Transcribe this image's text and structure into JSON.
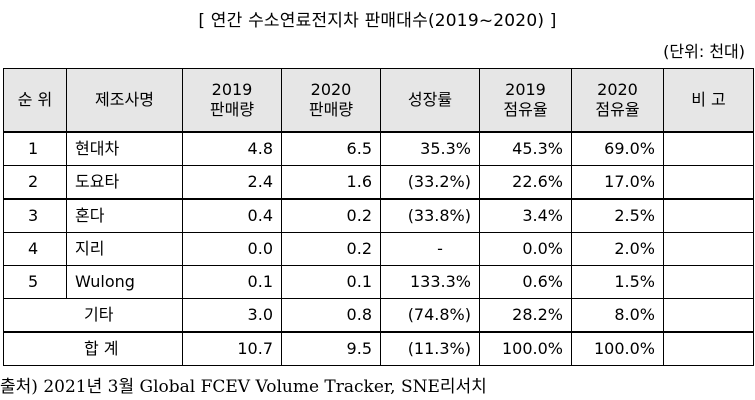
{
  "title": "[ 연간 수소연료전지차 판매대수(2019~2020) ]",
  "unit": "(단위: 천대)",
  "headers": {
    "rank": "순 위",
    "maker": "제조사명",
    "sales2019": [
      "2019",
      "판매량"
    ],
    "sales2020": [
      "2020",
      "판매량"
    ],
    "growth": "성장률",
    "share2019": [
      "2019",
      "점유율"
    ],
    "share2020": [
      "2020",
      "점유율"
    ],
    "note": "비 고"
  },
  "rows": [
    {
      "rank": "1",
      "maker": "현대차",
      "s2019": "4.8",
      "s2020": "6.5",
      "growth": "35.3%",
      "sh2019": "45.3%",
      "sh2020": "69.0%",
      "note": ""
    },
    {
      "rank": "2",
      "maker": "도요타",
      "s2019": "2.4",
      "s2020": "1.6",
      "growth": "(33.2%)",
      "sh2019": "22.6%",
      "sh2020": "17.0%",
      "note": ""
    },
    {
      "rank": "3",
      "maker": "혼다",
      "s2019": "0.4",
      "s2020": "0.2",
      "growth": "(33.8%)",
      "sh2019": "3.4%",
      "sh2020": "2.5%",
      "note": ""
    },
    {
      "rank": "4",
      "maker": "지리",
      "s2019": "0.0",
      "s2020": "0.2",
      "growth": "-",
      "sh2019": "0.0%",
      "sh2020": "2.0%",
      "note": ""
    },
    {
      "rank": "5",
      "maker": "Wulong",
      "s2019": "0.1",
      "s2020": "0.1",
      "growth": "133.3%",
      "sh2019": "0.6%",
      "sh2020": "1.5%",
      "note": ""
    }
  ],
  "others": {
    "label": "기타",
    "s2019": "3.0",
    "s2020": "0.8",
    "growth": "(74.8%)",
    "sh2019": "28.2%",
    "sh2020": "8.0%",
    "note": ""
  },
  "total": {
    "label": "합 계",
    "s2019": "10.7",
    "s2020": "9.5",
    "growth": "(11.3%)",
    "sh2019": "100.0%",
    "sh2020": "100.0%",
    "note": ""
  },
  "source": "출처) 2021년 3월 Global FCEV Volume Tracker, SNE리서치"
}
